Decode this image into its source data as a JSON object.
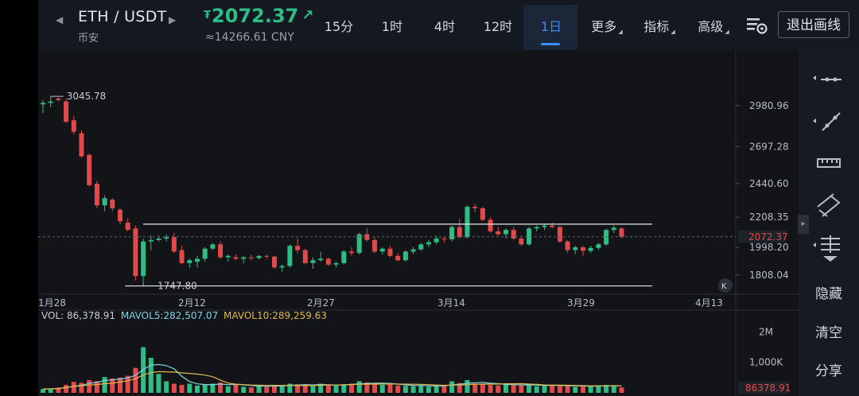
{
  "header": {
    "pair": "ETH / USDT",
    "exchange": "币安",
    "currency_symbol": "₮",
    "price": "2072.37",
    "price_cny": "≈14266.61 CNY",
    "price_color": "#2ebd85",
    "exit_label": "退出画线"
  },
  "tabs": [
    {
      "label": "15分"
    },
    {
      "label": "1时"
    },
    {
      "label": "4时"
    },
    {
      "label": "12时"
    },
    {
      "label": "1日",
      "active": true
    },
    {
      "label": "更多"
    },
    {
      "label": "指标"
    },
    {
      "label": "高级"
    }
  ],
  "sidebar": {
    "tools": [
      "horizontal-line-icon",
      "trend-line-icon",
      "ruler-icon",
      "parallel-lines-icon",
      "fib-lines-icon"
    ],
    "hide_label": "隐藏",
    "clear_label": "清空",
    "share_label": "分享"
  },
  "chart_data": {
    "type": "candlestick",
    "price_axis": {
      "ticks": [
        "2980.96",
        "2697.28",
        "2440.60",
        "2208.35",
        "1998.20",
        "1808.04"
      ],
      "current_price": "2072.37",
      "range": [
        1680,
        3140
      ]
    },
    "x_axis": {
      "ticks": [
        "1月28",
        "2月12",
        "2月27",
        "3月14",
        "3月29",
        "4月13"
      ]
    },
    "annotations": {
      "high_label": "3045.78",
      "low_label": "1747.80",
      "upper_line": 2160,
      "lower_line": 1732
    },
    "candles": [
      [
        2990,
        3020,
        2930,
        3000
      ],
      [
        3000,
        3045.78,
        2970,
        3010
      ],
      [
        3030,
        3040,
        3010,
        3020
      ],
      [
        3010,
        3030,
        2860,
        2870
      ],
      [
        2880,
        2910,
        2780,
        2800
      ],
      [
        2790,
        2810,
        2620,
        2630
      ],
      [
        2640,
        2650,
        2420,
        2430
      ],
      [
        2440,
        2460,
        2270,
        2290
      ],
      [
        2290,
        2360,
        2250,
        2340
      ],
      [
        2330,
        2340,
        2250,
        2270
      ],
      [
        2260,
        2270,
        2160,
        2180
      ],
      [
        2170,
        2200,
        2110,
        2120
      ],
      [
        2130,
        2150,
        1770,
        1800
      ],
      [
        1800,
        2060,
        1747.8,
        2040
      ],
      [
        2040,
        2080,
        1980,
        2050
      ],
      [
        2050,
        2080,
        2040,
        2060
      ],
      [
        2060,
        2090,
        2040,
        2070
      ],
      [
        2070,
        2100,
        1960,
        1970
      ],
      [
        1980,
        2010,
        1880,
        1890
      ],
      [
        1890,
        1920,
        1860,
        1910
      ],
      [
        1900,
        1940,
        1860,
        1920
      ],
      [
        1920,
        2000,
        1900,
        1990
      ],
      [
        1990,
        2030,
        1980,
        2020
      ],
      [
        2020,
        2040,
        1920,
        1930
      ],
      [
        1930,
        1950,
        1900,
        1940
      ],
      [
        1930,
        1950,
        1910,
        1920
      ],
      [
        1920,
        1940,
        1890,
        1930
      ],
      [
        1930,
        1950,
        1910,
        1925
      ],
      [
        1925,
        1945,
        1915,
        1940
      ],
      [
        1940,
        1950,
        1920,
        1935
      ],
      [
        1935,
        1940,
        1850,
        1860
      ],
      [
        1860,
        1880,
        1830,
        1870
      ],
      [
        1870,
        2020,
        1860,
        2010
      ],
      [
        2010,
        2060,
        1960,
        1980
      ],
      [
        1980,
        1990,
        1880,
        1890
      ],
      [
        1890,
        1930,
        1850,
        1910
      ],
      [
        1910,
        1970,
        1900,
        1920
      ],
      [
        1920,
        1930,
        1870,
        1880
      ],
      [
        1880,
        1900,
        1860,
        1890
      ],
      [
        1890,
        1980,
        1880,
        1970
      ],
      [
        1970,
        2000,
        1940,
        1960
      ],
      [
        1960,
        2100,
        1950,
        2090
      ],
      [
        2090,
        2130,
        2040,
        2050
      ],
      [
        2050,
        2070,
        1960,
        1970
      ],
      [
        1970,
        2000,
        1950,
        1990
      ],
      [
        1990,
        2010,
        1930,
        1940
      ],
      [
        1940,
        1960,
        1900,
        1910
      ],
      [
        1910,
        1980,
        1900,
        1970
      ],
      [
        1970,
        2000,
        1950,
        1985
      ],
      [
        1985,
        2030,
        1975,
        2020
      ],
      [
        2020,
        2050,
        2000,
        2035
      ],
      [
        2035,
        2080,
        2020,
        2060
      ],
      [
        2060,
        2070,
        2030,
        2055
      ],
      [
        2055,
        2150,
        2040,
        2140
      ],
      [
        2140,
        2200,
        2060,
        2070
      ],
      [
        2070,
        2290,
        2060,
        2280
      ],
      [
        2280,
        2300,
        2240,
        2270
      ],
      [
        2270,
        2280,
        2180,
        2190
      ],
      [
        2190,
        2210,
        2100,
        2110
      ],
      [
        2110,
        2140,
        2080,
        2090
      ],
      [
        2090,
        2130,
        2060,
        2120
      ],
      [
        2120,
        2140,
        2050,
        2060
      ],
      [
        2060,
        2080,
        2010,
        2020
      ],
      [
        2020,
        2140,
        2010,
        2130
      ],
      [
        2130,
        2150,
        2110,
        2140
      ],
      [
        2140,
        2160,
        2120,
        2150
      ],
      [
        2150,
        2170,
        2130,
        2140
      ],
      [
        2140,
        2150,
        2030,
        2040
      ],
      [
        2040,
        2050,
        1960,
        1980
      ],
      [
        1980,
        2010,
        1950,
        2000
      ],
      [
        2000,
        2010,
        1940,
        1975
      ],
      [
        1975,
        2010,
        1960,
        1995
      ],
      [
        1995,
        2030,
        1980,
        2020
      ],
      [
        2020,
        2130,
        2010,
        2120
      ],
      [
        2120,
        2150,
        2100,
        2135
      ],
      [
        2130,
        2140,
        2060,
        2072.37
      ]
    ],
    "volume_axis": {
      "ticks": [
        "2M",
        "1,000K"
      ],
      "current_volume": "86378.91",
      "max": 2300000
    },
    "volume_legend": {
      "vol": "VOL: 86,378.91",
      "mavol5": "MAVOL5:282,507.07",
      "mavol10": "MAVOL10:289,259.63"
    },
    "colors": {
      "up": "#2ebd85",
      "down": "#e04a4a",
      "mavol5": "#7fd3e0",
      "mavol10": "#e0b94a",
      "current_tag": "#e04a4a"
    }
  }
}
